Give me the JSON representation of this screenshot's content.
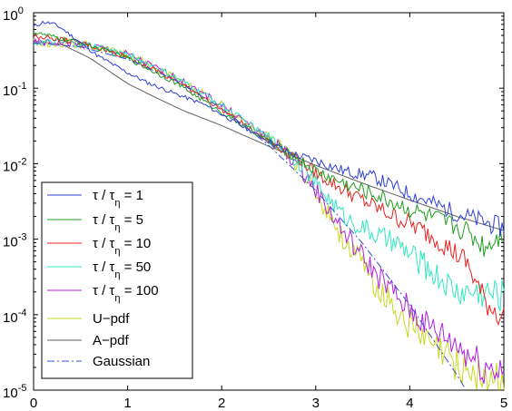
{
  "chart_data": {
    "type": "line",
    "title": "",
    "xlabel": "",
    "ylabel": "",
    "xlim": [
      0,
      5
    ],
    "ylim": [
      1e-05,
      1
    ],
    "yscale": "log",
    "grid": false,
    "legend_position": "bottom-left",
    "x_ticks": [
      "0",
      "1",
      "2",
      "3",
      "4",
      "5"
    ],
    "y_ticks": [
      {
        "base": "10",
        "exp": "0"
      },
      {
        "base": "10",
        "exp": "-1"
      },
      {
        "base": "10",
        "exp": "-2"
      },
      {
        "base": "10",
        "exp": "-3"
      },
      {
        "base": "10",
        "exp": "-4"
      },
      {
        "base": "10",
        "exp": "-5"
      }
    ],
    "series": [
      {
        "name": "τ / τη = 1",
        "label_main": "τ / τ",
        "label_sub": "η",
        "label_tail": " = 1",
        "color": "#2f3fd0",
        "style": "solid",
        "noise": 0.15,
        "x": [
          0,
          0.1,
          0.2,
          0.3,
          0.5,
          0.7,
          1.0,
          1.2,
          1.5,
          1.8,
          2.0,
          2.2,
          2.5,
          2.7,
          3.0,
          3.3,
          3.6,
          4.0,
          4.5,
          5.0
        ],
        "y": [
          0.65,
          0.75,
          0.72,
          0.62,
          0.4,
          0.26,
          0.16,
          0.12,
          0.085,
          0.062,
          0.045,
          0.032,
          0.02,
          0.014,
          0.011,
          0.008,
          0.0068,
          0.004,
          0.0022,
          0.0014
        ]
      },
      {
        "name": "τ / τη = 5",
        "label_main": "τ / τ",
        "label_sub": "η",
        "label_tail": " = 5",
        "color": "#1f9e1f",
        "style": "solid",
        "noise": 0.18,
        "x": [
          0,
          0.2,
          0.5,
          1.0,
          1.5,
          2.0,
          2.5,
          2.8,
          3.0,
          3.3,
          3.6,
          4.0,
          4.3,
          4.6,
          4.8,
          5.0
        ],
        "y": [
          0.55,
          0.48,
          0.4,
          0.25,
          0.12,
          0.048,
          0.02,
          0.012,
          0.008,
          0.0055,
          0.004,
          0.0025,
          0.0018,
          0.0013,
          0.0008,
          0.0013
        ]
      },
      {
        "name": "τ / τη = 10",
        "label_main": "τ / τ",
        "label_sub": "η",
        "label_tail": " = 10",
        "color": "#e82020",
        "style": "solid",
        "noise": 0.2,
        "x": [
          0,
          0.2,
          0.5,
          1.0,
          1.5,
          2.0,
          2.5,
          2.8,
          3.0,
          3.3,
          3.6,
          4.0,
          4.3,
          4.6,
          4.8,
          5.0
        ],
        "y": [
          0.5,
          0.46,
          0.4,
          0.26,
          0.13,
          0.052,
          0.02,
          0.012,
          0.0075,
          0.0045,
          0.0028,
          0.0016,
          0.001,
          0.0005,
          0.00015,
          9e-05
        ]
      },
      {
        "name": "τ / τη = 50",
        "label_main": "τ / τ",
        "label_sub": "η",
        "label_tail": " = 50",
        "color": "#2ee8c0",
        "style": "solid",
        "noise": 0.25,
        "x": [
          0,
          0.3,
          0.6,
          1.0,
          1.5,
          2.0,
          2.5,
          2.8,
          3.0,
          3.3,
          3.6,
          3.9,
          4.2,
          4.5,
          4.8,
          5.0
        ],
        "y": [
          0.4,
          0.4,
          0.37,
          0.28,
          0.14,
          0.06,
          0.022,
          0.011,
          0.0055,
          0.002,
          0.0012,
          0.0008,
          0.0004,
          0.0002,
          0.0002,
          0.00018
        ]
      },
      {
        "name": "τ / τη = 100",
        "label_main": "τ / τ",
        "label_sub": "η",
        "label_tail": " = 100",
        "color": "#b020e0",
        "style": "solid",
        "noise": 0.28,
        "x": [
          0,
          0.3,
          0.6,
          1.0,
          1.5,
          2.0,
          2.5,
          2.8,
          3.0,
          3.3,
          3.6,
          3.9,
          4.2,
          4.5,
          4.8,
          5.0
        ],
        "y": [
          0.4,
          0.4,
          0.37,
          0.28,
          0.14,
          0.06,
          0.022,
          0.01,
          0.0045,
          0.0012,
          0.0004,
          0.00015,
          7e-05,
          4e-05,
          2e-05,
          2e-05
        ]
      },
      {
        "name": "U−pdf",
        "label_main": "U−pdf",
        "label_sub": "",
        "label_tail": "",
        "color": "#c8d820",
        "style": "solid",
        "noise": 0.32,
        "x": [
          0,
          0.3,
          0.6,
          1.0,
          1.5,
          2.0,
          2.5,
          2.8,
          3.0,
          3.3,
          3.6,
          3.9,
          4.2,
          4.5,
          4.8,
          5.0
        ],
        "y": [
          0.4,
          0.4,
          0.37,
          0.28,
          0.14,
          0.06,
          0.022,
          0.01,
          0.0042,
          0.001,
          0.00028,
          0.0001,
          4e-05,
          2.2e-05,
          1.4e-05,
          1.2e-05
        ]
      },
      {
        "name": "A−pdf",
        "label_main": "A−pdf",
        "label_sub": "",
        "label_tail": "",
        "color": "#606060",
        "style": "solid",
        "noise": 0,
        "x": [
          0,
          0.3,
          0.6,
          1.0,
          1.3,
          1.6,
          2.0,
          2.5,
          3.0,
          3.5,
          4.0,
          4.5,
          5.0
        ],
        "y": [
          0.42,
          0.38,
          0.25,
          0.115,
          0.075,
          0.05,
          0.032,
          0.017,
          0.0095,
          0.0055,
          0.0033,
          0.002,
          0.0013
        ]
      },
      {
        "name": "Gaussian",
        "label_main": "Gaussian",
        "label_sub": "",
        "label_tail": "",
        "color": "#3050d0",
        "style": "dashdot",
        "noise": 0,
        "x": [
          0,
          0.5,
          1.0,
          1.5,
          2.0,
          2.5,
          3.0,
          3.5,
          4.0,
          4.5,
          5.0
        ],
        "y": [
          0.3989,
          0.3521,
          0.242,
          0.1295,
          0.054,
          0.0175,
          0.00443,
          0.000873,
          0.000134,
          1.6e-05,
          1.5e-06
        ]
      }
    ]
  }
}
